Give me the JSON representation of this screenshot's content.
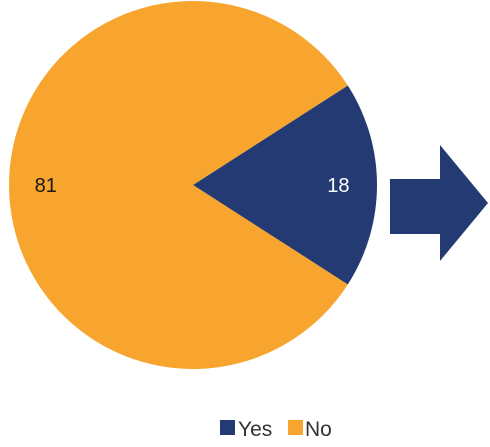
{
  "chart_data": {
    "type": "pie",
    "series": [
      {
        "name": "Yes",
        "value": 18,
        "color": "#243a73",
        "label_color": "#ffffff"
      },
      {
        "name": "No",
        "value": 81,
        "color": "#f7a52f",
        "label_color": "#1a1a1a"
      }
    ],
    "legend": {
      "position": "bottom"
    }
  },
  "arrow": {
    "icon": "right-arrow-icon",
    "color": "#243a73"
  }
}
